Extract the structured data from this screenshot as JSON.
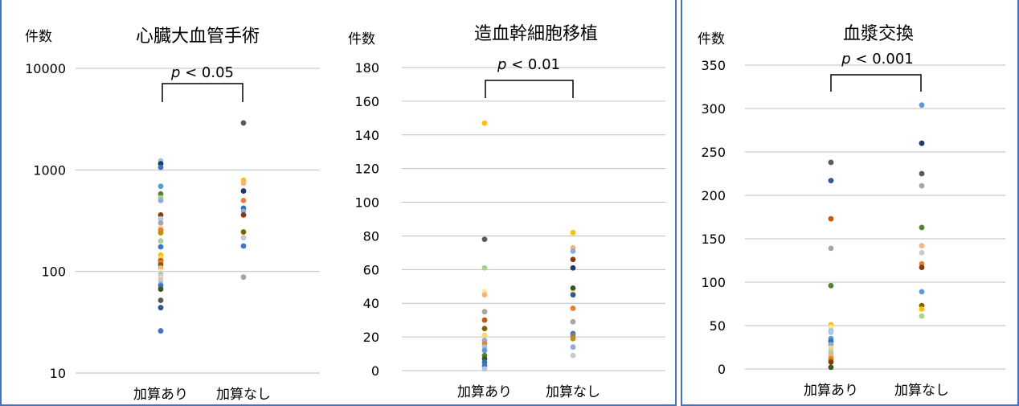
{
  "chart_data": [
    {
      "type": "scatter",
      "title": "心臓大血管手術",
      "ylabel": "件数",
      "scale": "log",
      "categories": [
        "加算あり",
        "加算なし"
      ],
      "yticks": [
        "10000",
        "1000",
        "100",
        "10"
      ],
      "ylim": [
        10,
        10000
      ],
      "annotation": {
        "p": "p",
        "text": " < 0.05"
      },
      "grid": true,
      "points": [
        {
          "x": "加算あり",
          "y": 1230,
          "color": "#9dc3e6"
        },
        {
          "x": "加算あり",
          "y": 1150,
          "color": "#203864"
        },
        {
          "x": "加算あり",
          "y": 1060,
          "color": "#4472c4"
        },
        {
          "x": "加算あり",
          "y": 690,
          "color": "#5b9bd5"
        },
        {
          "x": "加算あり",
          "y": 580,
          "color": "#548235"
        },
        {
          "x": "加算あり",
          "y": 530,
          "color": "#a9d18e"
        },
        {
          "x": "加算あり",
          "y": 500,
          "color": "#8faadc"
        },
        {
          "x": "加算あり",
          "y": 360,
          "color": "#843c0c"
        },
        {
          "x": "加算あり",
          "y": 330,
          "color": "#b4c7e7"
        },
        {
          "x": "加算あり",
          "y": 300,
          "color": "#a5a5a5"
        },
        {
          "x": "加算あり",
          "y": 270,
          "color": "#f8cbad"
        },
        {
          "x": "加算あり",
          "y": 255,
          "color": "#ed7d31"
        },
        {
          "x": "加算あり",
          "y": 240,
          "color": "#bf9000"
        },
        {
          "x": "加算あり",
          "y": 200,
          "color": "#a9d18e"
        },
        {
          "x": "加算あり",
          "y": 175,
          "color": "#4472c4"
        },
        {
          "x": "加算あり",
          "y": 145,
          "color": "#ffc000"
        },
        {
          "x": "加算あり",
          "y": 135,
          "color": "#ffd966"
        },
        {
          "x": "加算あり",
          "y": 128,
          "color": "#c55a11"
        },
        {
          "x": "加算あり",
          "y": 122,
          "color": "#ed7d31"
        },
        {
          "x": "加算あり",
          "y": 116,
          "color": "#7f6000"
        },
        {
          "x": "加算あり",
          "y": 108,
          "color": "#f4b183"
        },
        {
          "x": "加算あり",
          "y": 100,
          "color": "#ffe699"
        },
        {
          "x": "加算あり",
          "y": 94,
          "color": "#9dc3e6"
        },
        {
          "x": "加算あり",
          "y": 88,
          "color": "#f8cbad"
        },
        {
          "x": "加算あり",
          "y": 82,
          "color": "#c9c9c9"
        },
        {
          "x": "加算あり",
          "y": 75,
          "color": "#8faadc"
        },
        {
          "x": "加算あり",
          "y": 72,
          "color": "#4472c4"
        },
        {
          "x": "加算あり",
          "y": 67,
          "color": "#385723"
        },
        {
          "x": "加算あり",
          "y": 52,
          "color": "#595959"
        },
        {
          "x": "加算あり",
          "y": 44,
          "color": "#2f5597"
        },
        {
          "x": "加算あり",
          "y": 26,
          "color": "#4472c4"
        },
        {
          "x": "加算なし",
          "y": 2900,
          "color": "#595959"
        },
        {
          "x": "加算なし",
          "y": 790,
          "color": "#ffc000"
        },
        {
          "x": "加算なし",
          "y": 740,
          "color": "#f4b183"
        },
        {
          "x": "加算なし",
          "y": 620,
          "color": "#203864"
        },
        {
          "x": "加算なし",
          "y": 500,
          "color": "#ed7d31"
        },
        {
          "x": "加算なし",
          "y": 420,
          "color": "#2e75b6"
        },
        {
          "x": "加算なし",
          "y": 390,
          "color": "#8faadc"
        },
        {
          "x": "加算なし",
          "y": 360,
          "color": "#843c0c"
        },
        {
          "x": "加算なし",
          "y": 245,
          "color": "#7f6000"
        },
        {
          "x": "加算なし",
          "y": 215,
          "color": "#c9c9c9"
        },
        {
          "x": "加算なし",
          "y": 178,
          "color": "#4472c4"
        },
        {
          "x": "加算なし",
          "y": 88,
          "color": "#a5a5a5"
        }
      ]
    },
    {
      "type": "scatter",
      "title": "造血幹細胞移植",
      "ylabel": "件数",
      "scale": "linear",
      "categories": [
        "加算あり",
        "加算なし"
      ],
      "yticks": [
        "180",
        "160",
        "140",
        "120",
        "100",
        "80",
        "60",
        "40",
        "20",
        "0"
      ],
      "ylim": [
        0,
        180
      ],
      "annotation": {
        "p": "p",
        "text": " < 0.01"
      },
      "grid": true,
      "points": [
        {
          "x": "加算あり",
          "y": 147,
          "color": "#ffc000"
        },
        {
          "x": "加算あり",
          "y": 78,
          "color": "#595959"
        },
        {
          "x": "加算あり",
          "y": 61,
          "color": "#a9d18e"
        },
        {
          "x": "加算あり",
          "y": 47,
          "color": "#ffe699"
        },
        {
          "x": "加算あり",
          "y": 45,
          "color": "#f4b183"
        },
        {
          "x": "加算あり",
          "y": 35,
          "color": "#a5a5a5"
        },
        {
          "x": "加算あり",
          "y": 30,
          "color": "#c55a11"
        },
        {
          "x": "加算あり",
          "y": 25,
          "color": "#7f6000"
        },
        {
          "x": "加算あり",
          "y": 21,
          "color": "#ffd966"
        },
        {
          "x": "加算あり",
          "y": 18,
          "color": "#8faadc"
        },
        {
          "x": "加算あり",
          "y": 16,
          "color": "#ed7d31"
        },
        {
          "x": "加算あり",
          "y": 14,
          "color": "#9dc3e6"
        },
        {
          "x": "加算あり",
          "y": 12,
          "color": "#5b9bd5"
        },
        {
          "x": "加算あり",
          "y": 9,
          "color": "#548235"
        },
        {
          "x": "加算あり",
          "y": 7,
          "color": "#385723"
        },
        {
          "x": "加算あり",
          "y": 5,
          "color": "#2e75b6"
        },
        {
          "x": "加算あり",
          "y": 3,
          "color": "#4472c4"
        },
        {
          "x": "加算あり",
          "y": 1,
          "color": "#b4c7e7"
        },
        {
          "x": "加算なし",
          "y": 82,
          "color": "#ffc000"
        },
        {
          "x": "加算なし",
          "y": 73,
          "color": "#f4b183"
        },
        {
          "x": "加算なし",
          "y": 71,
          "color": "#8faadc"
        },
        {
          "x": "加算なし",
          "y": 66,
          "color": "#843c0c"
        },
        {
          "x": "加算なし",
          "y": 61,
          "color": "#203864"
        },
        {
          "x": "加算なし",
          "y": 49,
          "color": "#385723"
        },
        {
          "x": "加算なし",
          "y": 46,
          "color": "#ffd966"
        },
        {
          "x": "加算なし",
          "y": 45,
          "color": "#2f5597"
        },
        {
          "x": "加算なし",
          "y": 37,
          "color": "#ed7d31"
        },
        {
          "x": "加算なし",
          "y": 29,
          "color": "#a5a5a5"
        },
        {
          "x": "加算なし",
          "y": 22,
          "color": "#4472c4"
        },
        {
          "x": "加算なし",
          "y": 21,
          "color": "#7f7f7f"
        },
        {
          "x": "加算なし",
          "y": 19,
          "color": "#bf9000"
        },
        {
          "x": "加算なし",
          "y": 14,
          "color": "#8faadc"
        },
        {
          "x": "加算なし",
          "y": 9,
          "color": "#c9c9c9"
        }
      ]
    },
    {
      "type": "scatter",
      "title": "血漿交換",
      "ylabel": "件数",
      "scale": "linear",
      "categories": [
        "加算あり",
        "加算なし"
      ],
      "yticks": [
        "350",
        "300",
        "250",
        "200",
        "150",
        "100",
        "50",
        "0"
      ],
      "ylim": [
        0,
        350
      ],
      "annotation": {
        "p": "p",
        "text": " < 0.001"
      },
      "grid": true,
      "points": [
        {
          "x": "加算あり",
          "y": 238,
          "color": "#595959"
        },
        {
          "x": "加算あり",
          "y": 217,
          "color": "#2f5597"
        },
        {
          "x": "加算あり",
          "y": 173,
          "color": "#c55a11"
        },
        {
          "x": "加算あり",
          "y": 139,
          "color": "#a5a5a5"
        },
        {
          "x": "加算あり",
          "y": 96,
          "color": "#548235"
        },
        {
          "x": "加算あり",
          "y": 51,
          "color": "#ffc000"
        },
        {
          "x": "加算あり",
          "y": 48,
          "color": "#ffe699"
        },
        {
          "x": "加算あり",
          "y": 44,
          "color": "#9dc3e6"
        },
        {
          "x": "加算あり",
          "y": 42,
          "color": "#b4c7e7"
        },
        {
          "x": "加算あり",
          "y": 35,
          "color": "#5b9bd5"
        },
        {
          "x": "加算あり",
          "y": 32,
          "color": "#2e75b6"
        },
        {
          "x": "加算あり",
          "y": 28,
          "color": "#8faadc"
        },
        {
          "x": "加算あり",
          "y": 24,
          "color": "#ffd966"
        },
        {
          "x": "加算あり",
          "y": 21,
          "color": "#c9c9c9"
        },
        {
          "x": "加算あり",
          "y": 18,
          "color": "#a9d18e"
        },
        {
          "x": "加算あり",
          "y": 15,
          "color": "#f4b183"
        },
        {
          "x": "加算あり",
          "y": 12,
          "color": "#ed7d31"
        },
        {
          "x": "加算あり",
          "y": 10,
          "color": "#bf9000"
        },
        {
          "x": "加算あり",
          "y": 8,
          "color": "#843c0c"
        },
        {
          "x": "加算あり",
          "y": 2,
          "color": "#385723"
        },
        {
          "x": "加算なし",
          "y": 304,
          "color": "#5b9bd5"
        },
        {
          "x": "加算なし",
          "y": 260,
          "color": "#203864"
        },
        {
          "x": "加算なし",
          "y": 225,
          "color": "#595959"
        },
        {
          "x": "加算なし",
          "y": 211,
          "color": "#a5a5a5"
        },
        {
          "x": "加算なし",
          "y": 163,
          "color": "#548235"
        },
        {
          "x": "加算なし",
          "y": 142,
          "color": "#f4b183"
        },
        {
          "x": "加算なし",
          "y": 134,
          "color": "#c9c9c9"
        },
        {
          "x": "加算なし",
          "y": 121,
          "color": "#ed7d31"
        },
        {
          "x": "加算なし",
          "y": 117,
          "color": "#843c0c"
        },
        {
          "x": "加算なし",
          "y": 89,
          "color": "#5b9bd5"
        },
        {
          "x": "加算なし",
          "y": 73,
          "color": "#7f6000"
        },
        {
          "x": "加算なし",
          "y": 69,
          "color": "#ffc000"
        },
        {
          "x": "加算なし",
          "y": 61,
          "color": "#a9d18e"
        }
      ]
    }
  ]
}
